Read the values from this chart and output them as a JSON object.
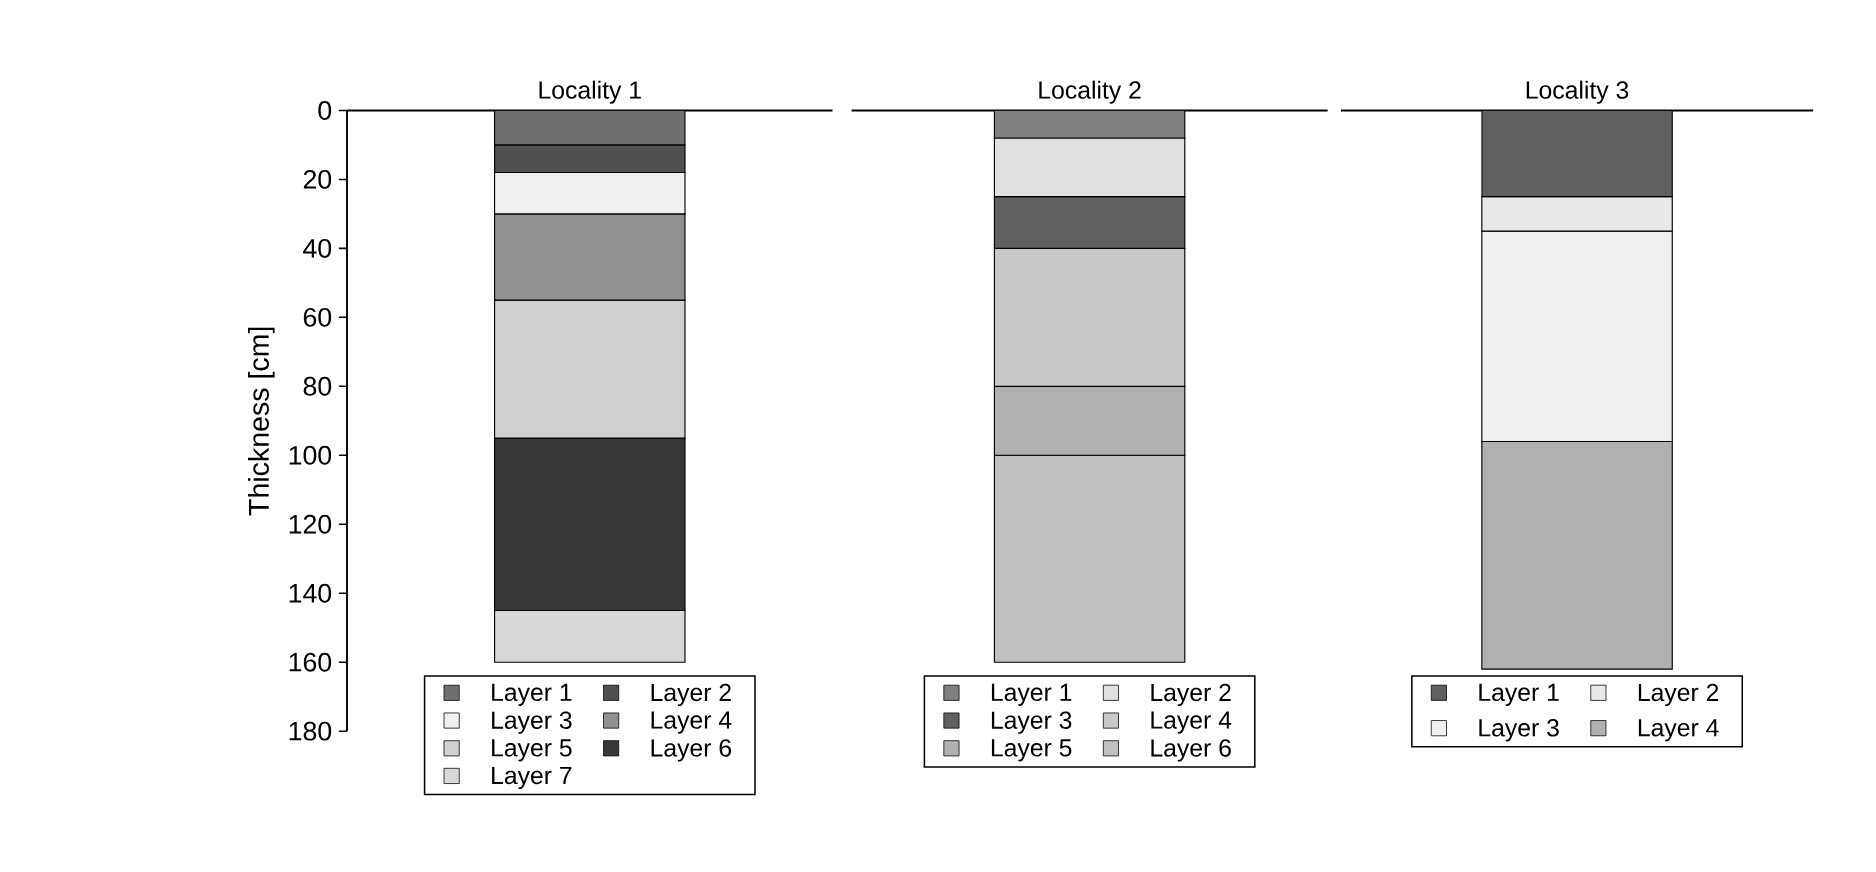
{
  "chart_data": [
    {
      "type": "bar",
      "stacked": true,
      "categories": [
        "Locality 1"
      ],
      "ylabel": "Thickness [cm]",
      "ylim": [
        180,
        0
      ],
      "yticks": [
        0,
        20,
        40,
        60,
        80,
        100,
        120,
        140,
        160,
        180
      ],
      "legend": "bottom",
      "series": [
        {
          "name": "Layer 1",
          "color": "#707070",
          "values": [
            10
          ]
        },
        {
          "name": "Layer 2",
          "color": "#505050",
          "values": [
            8
          ]
        },
        {
          "name": "Layer 3",
          "color": "#f0f0f0",
          "values": [
            12
          ]
        },
        {
          "name": "Layer 4",
          "color": "#909090",
          "values": [
            25
          ]
        },
        {
          "name": "Layer 5",
          "color": "#d0d0d0",
          "values": [
            40
          ]
        },
        {
          "name": "Layer 6",
          "color": "#383838",
          "values": [
            50
          ]
        },
        {
          "name": "Layer 7",
          "color": "#d8d8d8",
          "values": [
            15
          ]
        }
      ]
    },
    {
      "type": "bar",
      "stacked": true,
      "categories": [
        "Locality 2"
      ],
      "ylim": [
        180,
        0
      ],
      "tick_labels": "x",
      "legend": "bottom",
      "series": [
        {
          "name": "Layer 1",
          "color": "#808080",
          "values": [
            8
          ]
        },
        {
          "name": "Layer 2",
          "color": "#e0e0e0",
          "values": [
            17
          ]
        },
        {
          "name": "Layer 3",
          "color": "#606060",
          "values": [
            15
          ]
        },
        {
          "name": "Layer 4",
          "color": "#c8c8c8",
          "values": [
            40
          ]
        },
        {
          "name": "Layer 5",
          "color": "#b0b0b0",
          "values": [
            20
          ]
        },
        {
          "name": "Layer 6",
          "color": "#c0c0c0",
          "values": [
            60
          ]
        }
      ]
    },
    {
      "type": "bar",
      "stacked": true,
      "categories": [
        "Locality 3"
      ],
      "ylim": [
        180,
        0
      ],
      "tick_labels": "x",
      "legend": "bottom",
      "series": [
        {
          "name": "Layer 1",
          "color": "#606060",
          "values": [
            25
          ]
        },
        {
          "name": "Layer 2",
          "color": "#e8e8e8",
          "values": [
            10
          ]
        },
        {
          "name": "Layer 3",
          "color": "#f0f0f0",
          "values": [
            61
          ]
        },
        {
          "name": "Layer 4",
          "color": "#b0b0b0",
          "values": [
            66
          ]
        }
      ]
    }
  ]
}
